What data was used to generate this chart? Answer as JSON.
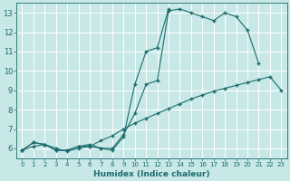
{
  "xlabel": "Humidex (Indice chaleur)",
  "bg_color": "#c8e8e8",
  "line_color": "#1a6b6b",
  "grid_color": "#b0d0d0",
  "xlim": [
    -0.5,
    23.5
  ],
  "ylim": [
    5.5,
    13.5
  ],
  "xticks": [
    0,
    1,
    2,
    3,
    4,
    5,
    6,
    7,
    8,
    9,
    10,
    11,
    12,
    13,
    14,
    15,
    16,
    17,
    18,
    19,
    20,
    21,
    22,
    23
  ],
  "yticks": [
    6,
    7,
    8,
    9,
    10,
    11,
    12,
    13
  ],
  "line1_x": [
    0,
    1,
    2,
    3,
    4,
    5,
    6,
    7,
    8,
    9,
    10,
    11,
    12,
    13,
    14,
    15,
    16,
    17,
    18,
    19,
    20,
    21
  ],
  "line1_y": [
    5.9,
    6.3,
    6.2,
    5.9,
    5.9,
    6.1,
    6.1,
    6.0,
    6.0,
    6.7,
    7.8,
    9.3,
    9.5,
    13.1,
    13.2,
    13.0,
    12.8,
    12.6,
    13.0,
    12.8,
    12.1,
    10.4
  ],
  "line2_x": [
    0,
    1,
    2,
    3,
    4,
    5,
    6,
    7,
    8,
    9,
    10,
    11,
    12,
    13
  ],
  "line2_y": [
    5.9,
    6.3,
    6.2,
    5.9,
    5.9,
    6.1,
    6.2,
    6.0,
    5.9,
    6.6,
    9.3,
    11.0,
    11.2,
    13.2
  ],
  "line3_x": [
    0,
    1,
    2,
    3,
    4,
    5,
    6,
    7,
    8,
    9,
    10,
    11,
    12,
    13,
    14,
    15,
    16,
    17,
    18,
    19,
    20,
    21,
    22,
    23
  ],
  "line3_y": [
    5.9,
    6.1,
    6.2,
    6.0,
    5.85,
    6.0,
    6.1,
    6.4,
    6.65,
    7.0,
    7.3,
    7.55,
    7.8,
    8.05,
    8.3,
    8.55,
    8.75,
    8.95,
    9.1,
    9.25,
    9.4,
    9.55,
    9.7,
    9.0
  ]
}
